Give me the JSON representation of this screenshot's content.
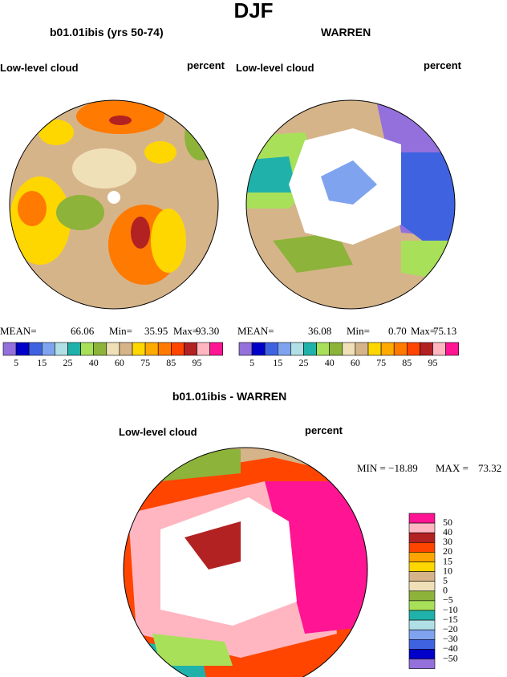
{
  "title": "DJF",
  "panels": [
    {
      "title": "b01.01ibis (yrs 50-74)",
      "left_label": "Low-level cloud",
      "right_label": "percent",
      "stats": [
        "MEAN=",
        "66.06",
        "Min=",
        "35.95",
        "Max=",
        "93.30"
      ]
    },
    {
      "title": "WARREN",
      "left_label": "Low-level cloud",
      "right_label": "percent",
      "stats": [
        "MEAN=",
        "36.08",
        "Min=",
        "0.70",
        "Max=",
        "75.13"
      ]
    },
    {
      "title": "b01.01ibis - WARREN",
      "left_label": "Low-level cloud",
      "right_label": "percent",
      "stats": [
        "MIN = −18.89",
        "MAX =",
        "73.32"
      ]
    }
  ],
  "colorbar_top": {
    "colors": [
      "#9370db",
      "#0000c8",
      "#3f63e0",
      "#7fa3ef",
      "#b0e0e6",
      "#20b2aa",
      "#a8e05a",
      "#8db33a",
      "#f0e0b8",
      "#d6b48a",
      "#ffd700",
      "#ffaa00",
      "#ff7a00",
      "#ff4500",
      "#b22222",
      "#ffb6c1",
      "#ff1493"
    ],
    "labels": [
      "5",
      "15",
      "25",
      "40",
      "60",
      "75",
      "85",
      "95"
    ]
  },
  "colorbar_diff": {
    "colors": [
      "#ff1493",
      "#ffb6c1",
      "#b22222",
      "#ff4500",
      "#ffa500",
      "#ffd700",
      "#d6b48a",
      "#f0e0b8",
      "#8db33a",
      "#a8e05a",
      "#20b2aa",
      "#b0e0e6",
      "#7fa3ef",
      "#3f63e0",
      "#0000c8",
      "#9370db"
    ],
    "labels": [
      "50",
      "40",
      "30",
      "20",
      "15",
      "10",
      "5",
      "0",
      "−5",
      "−10",
      "−15",
      "−20",
      "−30",
      "−40",
      "−50"
    ]
  }
}
